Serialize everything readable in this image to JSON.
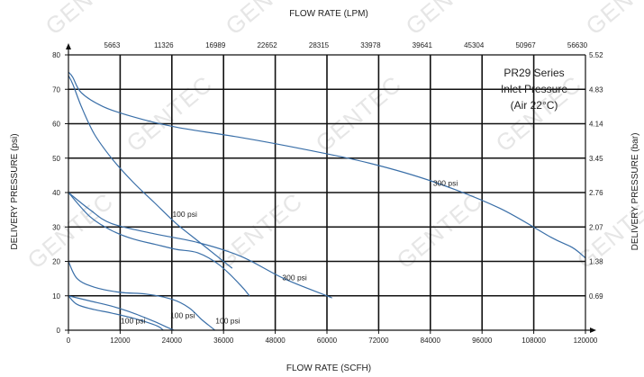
{
  "chart_data": {
    "type": "line",
    "title_top_axis": "FLOW RATE (LPM)",
    "xlabel": "FLOW RATE (SCFH)",
    "ylabel": "DELIVERY PRESSURE (psi)",
    "ylabel_right": "DELIVERY PRESSURE (bar)",
    "xlim": [
      0,
      120000
    ],
    "ylim": [
      0,
      80
    ],
    "x_ticks": [
      "0",
      "12000",
      "24000",
      "36000",
      "48000",
      "60000",
      "72000",
      "84000",
      "96000",
      "108000",
      "120000"
    ],
    "y_ticks": [
      "0",
      "10",
      "20",
      "30",
      "40",
      "50",
      "60",
      "70",
      "80"
    ],
    "top_ticks": [
      "5663",
      "11326",
      "16989",
      "22652",
      "28315",
      "33978",
      "39641",
      "45304",
      "50967",
      "56630"
    ],
    "right_ticks": [
      "0.69",
      "1.38",
      "2.07",
      "2.76",
      "3.45",
      "4.14",
      "4.83",
      "5.52"
    ],
    "grid": true,
    "annotation": [
      "PR29 Series",
      "Inlet Pressure",
      "(Air 22°C)"
    ],
    "watermark": "GENTEC",
    "series": [
      {
        "label": "300 psi",
        "x": [
          0,
          1000,
          3000,
          8000,
          15000,
          25000,
          40000,
          55000,
          70000,
          85000,
          100000,
          112000,
          117000,
          120000
        ],
        "y": [
          75,
          73.5,
          69,
          65,
          62,
          59,
          56,
          52.5,
          48.5,
          43,
          35.5,
          27,
          24,
          21
        ]
      },
      {
        "label": "100 psi",
        "x": [
          0,
          1000,
          3000,
          6000,
          10000,
          15000,
          20000,
          25000,
          30000,
          35000,
          38000
        ],
        "y": [
          74,
          71.5,
          65,
          57,
          50,
          43,
          37,
          31,
          26,
          21,
          18
        ]
      },
      {
        "label": "300 psi",
        "x": [
          0,
          5000,
          10000,
          20000,
          30000,
          40000,
          50000,
          60000,
          61000
        ],
        "y": [
          40,
          35,
          31,
          28,
          25.5,
          21.5,
          15,
          10,
          9.5
        ]
      },
      {
        "label": "",
        "x": [
          0,
          5000,
          10000,
          15000,
          20000,
          25000,
          30000,
          35000,
          40000,
          42000
        ],
        "y": [
          40,
          33,
          29,
          26.5,
          25,
          23.5,
          22.5,
          19,
          13,
          10
        ]
      },
      {
        "label": "100 psi",
        "x": [
          0,
          2000,
          6000,
          12000,
          18000,
          24000,
          28000,
          31000,
          33000,
          34000
        ],
        "y": [
          20,
          15,
          12.5,
          11,
          10.5,
          9,
          6.5,
          3,
          1,
          0
        ]
      },
      {
        "label": "100 psi",
        "x": [
          0,
          2000,
          6000,
          10000,
          15000,
          19000,
          21000,
          22000
        ],
        "y": [
          10,
          7.5,
          6,
          5,
          3.5,
          2,
          1,
          0
        ]
      },
      {
        "label": "",
        "x": [
          0,
          5000,
          10000,
          15000,
          20000,
          23000,
          24500
        ],
        "y": [
          10,
          8.5,
          7,
          5,
          2.5,
          0.8,
          0
        ]
      }
    ],
    "data_labels": [
      {
        "text": "300 psi",
        "x": 87500,
        "y": 42
      },
      {
        "text": "100 psi",
        "x": 27000,
        "y": 33
      },
      {
        "text": "300 psi",
        "x": 52500,
        "y": 14.5
      },
      {
        "text": "100 psi",
        "x": 15000,
        "y": 2
      },
      {
        "text": "100 psi",
        "x": 26500,
        "y": 3.5
      },
      {
        "text": "100 psi",
        "x": 37000,
        "y": 2
      }
    ]
  }
}
